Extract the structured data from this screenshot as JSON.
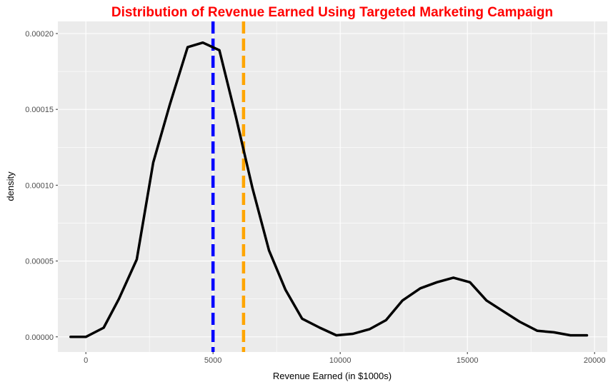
{
  "chart_data": {
    "type": "line",
    "title": "Distribution of Revenue Earned Using Targeted Marketing Campaign",
    "xlabel": "Revenue Earned (in $1000s)",
    "ylabel": "density",
    "xlim": [
      -1100,
      20500
    ],
    "ylim": [
      -1e-05,
      0.000208
    ],
    "x_ticks": [
      0,
      5000,
      10000,
      15000,
      20000
    ],
    "x_tick_labels": [
      "0",
      "5000",
      "10000",
      "15000",
      "20000"
    ],
    "y_ticks": [
      0,
      5e-05,
      0.0001,
      0.00015,
      0.0002
    ],
    "y_tick_labels": [
      "0.00000",
      "0.00005",
      "0.00010",
      "0.00015",
      "0.00020"
    ],
    "grid": true,
    "series": [
      {
        "x": [
          -600,
          0,
          700,
          1300,
          2000,
          2650,
          3300,
          4000,
          4600,
          5250,
          5900,
          6550,
          7200,
          7850,
          8500,
          9200,
          9850,
          10500,
          11150,
          11800,
          12450,
          13150,
          13800,
          14450,
          15100,
          15750,
          16400,
          17050,
          17750,
          18400,
          19050,
          19700
        ],
        "y": [
          0.0,
          0.0,
          6e-06,
          2.5e-05,
          5.1e-05,
          0.000115,
          0.000153,
          0.000191,
          0.000194,
          0.000189,
          0.000145,
          9.8e-05,
          5.7e-05,
          3.1e-05,
          1.2e-05,
          6e-06,
          1e-06,
          2e-06,
          5e-06,
          1.1e-05,
          2.4e-05,
          3.2e-05,
          3.6e-05,
          3.9e-05,
          3.6e-05,
          2.4e-05,
          1.7e-05,
          1e-05,
          4e-06,
          3e-06,
          1e-06,
          1e-06
        ],
        "color": "#000000"
      }
    ],
    "vlines": [
      {
        "x": 5000,
        "color": "#0000ff",
        "style": "dashed"
      },
      {
        "x": 6200,
        "color": "#ffa500",
        "style": "dashed"
      }
    ],
    "colors": {
      "title": "#ff0000",
      "panel_background": "#ebebeb",
      "grid": "#ffffff"
    }
  }
}
